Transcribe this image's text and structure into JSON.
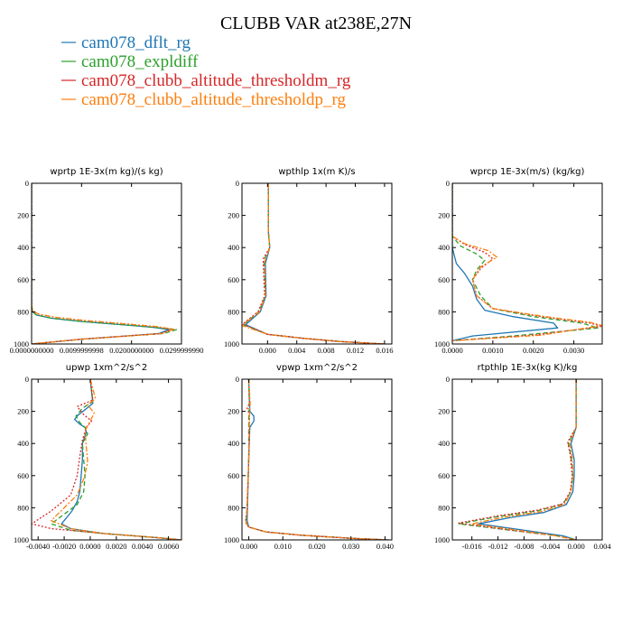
{
  "figure": {
    "title": "CLUBB VAR at238E,27N",
    "legend": [
      {
        "label": "cam078_dflt_rg",
        "color": "#1f77b4"
      },
      {
        "label": "cam078_expldiff",
        "color": "#2ca02c"
      },
      {
        "label": "cam078_clubb_altitude_thresholdm_rg",
        "color": "#d62728"
      },
      {
        "label": "cam078_clubb_altitude_thresholdp_rg",
        "color": "#ff7f0e"
      }
    ]
  },
  "chart_data": [
    {
      "type": "line",
      "title": "wprtp  1E-3x(m kg)/(s kg)",
      "xlim": [
        0.0,
        0.03
      ],
      "ylim": [
        1000,
        0
      ],
      "xticks": [
        0.0,
        0.0099999998,
        0.02,
        0.029999999
      ],
      "xtick_labels": [
        "0.0000000000",
        "0.0099999998",
        "0.0200000000",
        "0.0299999990"
      ],
      "yticks": [
        0,
        200,
        400,
        600,
        800,
        1000
      ],
      "series": [
        {
          "color": "#1f77b4",
          "dash": "solid",
          "x": [
            0.0,
            0.0,
            0.0002,
            0.001,
            0.004,
            0.01,
            0.018,
            0.024,
            0.0275,
            0.0255,
            0.01,
            0.0
          ],
          "y": [
            0,
            760,
            800,
            820,
            840,
            860,
            880,
            895,
            910,
            935,
            970,
            1000
          ]
        },
        {
          "color": "#2ca02c",
          "dash": "5,3",
          "x": [
            0.0,
            0.0,
            0.0002,
            0.001,
            0.004,
            0.01,
            0.018,
            0.024,
            0.029,
            0.0265,
            0.01,
            0.0
          ],
          "y": [
            0,
            760,
            800,
            820,
            840,
            860,
            880,
            895,
            910,
            935,
            970,
            1000
          ]
        },
        {
          "color": "#d62728",
          "dash": "2,2",
          "x": [
            0.0,
            0.0,
            0.0002,
            0.0015,
            0.005,
            0.011,
            0.019,
            0.025,
            0.028,
            0.026,
            0.01,
            0.0
          ],
          "y": [
            0,
            760,
            795,
            815,
            835,
            855,
            875,
            892,
            908,
            935,
            970,
            1000
          ]
        },
        {
          "color": "#ff7f0e",
          "dash": "6,2,2,2",
          "x": [
            0.0,
            0.0,
            0.0002,
            0.0015,
            0.005,
            0.011,
            0.019,
            0.025,
            0.0285,
            0.0262,
            0.01,
            0.0
          ],
          "y": [
            0,
            760,
            795,
            815,
            835,
            855,
            875,
            892,
            908,
            935,
            970,
            1000
          ]
        }
      ]
    },
    {
      "type": "line",
      "title": "wpthlp  1x(m K)/s",
      "xlim": [
        -0.0035,
        0.017
      ],
      "ylim": [
        1000,
        0
      ],
      "xticks": [
        0.0,
        0.004,
        0.008,
        0.012,
        0.016
      ],
      "xtick_labels": [
        "0.000",
        "0.004",
        "0.008",
        "0.012",
        "0.016"
      ],
      "yticks": [
        0,
        200,
        400,
        600,
        800,
        1000
      ],
      "series": [
        {
          "color": "#1f77b4",
          "dash": "solid",
          "x": [
            0.0001,
            0.0001,
            0.0003,
            -0.0003,
            -0.0002,
            -0.001,
            -0.003,
            0.0,
            0.005,
            0.01,
            0.016
          ],
          "y": [
            0,
            300,
            400,
            500,
            700,
            800,
            880,
            940,
            965,
            985,
            1000
          ]
        },
        {
          "color": "#2ca02c",
          "dash": "5,3",
          "x": [
            0.0001,
            0.0001,
            0.0003,
            -0.0005,
            -0.0003,
            -0.0012,
            -0.0033,
            0.0,
            0.005,
            0.01,
            0.016
          ],
          "y": [
            0,
            300,
            400,
            480,
            700,
            800,
            880,
            940,
            965,
            985,
            1000
          ]
        },
        {
          "color": "#d62728",
          "dash": "2,2",
          "x": [
            0.0001,
            0.0001,
            0.0003,
            -0.0006,
            -0.0004,
            -0.0013,
            -0.0034,
            0.0,
            0.005,
            0.01,
            0.016
          ],
          "y": [
            0,
            300,
            400,
            470,
            700,
            800,
            875,
            940,
            965,
            985,
            1000
          ]
        },
        {
          "color": "#ff7f0e",
          "dash": "6,2,2,2",
          "x": [
            0.0001,
            0.0001,
            0.0003,
            -0.0004,
            -0.0003,
            -0.0011,
            -0.0035,
            0.0,
            0.005,
            0.01,
            0.016
          ],
          "y": [
            0,
            300,
            400,
            490,
            700,
            800,
            885,
            940,
            965,
            985,
            1000
          ]
        }
      ]
    },
    {
      "type": "line",
      "title": "wprcp  1E-3x(m/s) (kg/kg)",
      "xlim": [
        0.0,
        0.0037
      ],
      "ylim": [
        1000,
        0
      ],
      "xticks": [
        0.0,
        0.001,
        0.002,
        0.003
      ],
      "xtick_labels": [
        "0.0000",
        "0.0010",
        "0.0020",
        "0.0030"
      ],
      "yticks": [
        0,
        200,
        400,
        600,
        800,
        1000
      ],
      "series": [
        {
          "color": "#1f77b4",
          "dash": "solid",
          "x": [
            0.0,
            0.0,
            0.0,
            5e-05,
            0.0001,
            0.0003,
            0.0005,
            0.0006,
            0.0008,
            0.0015,
            0.0025,
            0.0026,
            0.0005,
            0.0
          ],
          "y": [
            0,
            380,
            400,
            450,
            500,
            560,
            640,
            720,
            790,
            830,
            870,
            900,
            950,
            980
          ]
        },
        {
          "color": "#2ca02c",
          "dash": "5,3",
          "x": [
            0.0,
            0.0,
            0.0002,
            0.0006,
            0.0008,
            0.0006,
            0.0005,
            0.0007,
            0.001,
            0.002,
            0.0032,
            0.0036,
            0.0015,
            0.0
          ],
          "y": [
            0,
            330,
            390,
            440,
            480,
            540,
            600,
            700,
            780,
            830,
            870,
            900,
            950,
            980
          ]
        },
        {
          "color": "#d62728",
          "dash": "2,2",
          "x": [
            0.0,
            0.0,
            0.0003,
            0.0008,
            0.001,
            0.0007,
            0.0005,
            0.0006,
            0.001,
            0.0022,
            0.0034,
            0.0037,
            0.002,
            0.0
          ],
          "y": [
            0,
            330,
            380,
            430,
            470,
            530,
            600,
            700,
            780,
            830,
            870,
            890,
            945,
            980
          ]
        },
        {
          "color": "#ff7f0e",
          "dash": "6,2,2,2",
          "x": [
            0.0,
            0.0,
            0.0003,
            0.0009,
            0.0011,
            0.0007,
            0.0005,
            0.0006,
            0.001,
            0.0023,
            0.0034,
            0.0037,
            0.0022,
            0.0
          ],
          "y": [
            0,
            330,
            375,
            420,
            460,
            520,
            600,
            700,
            780,
            830,
            865,
            885,
            945,
            980
          ]
        }
      ]
    },
    {
      "type": "line",
      "title": "upwp  1xm^2/s^2",
      "xlim": [
        -0.0045,
        0.007
      ],
      "ylim": [
        1000,
        0
      ],
      "xticks": [
        -0.004,
        -0.002,
        0.0,
        0.002,
        0.004,
        0.006
      ],
      "xtick_labels": [
        "-0.0040",
        "-0.0020",
        "0.0000",
        "0.0020",
        "0.0040",
        "0.0060"
      ],
      "yticks": [
        0,
        200,
        400,
        600,
        800,
        1000
      ],
      "series": [
        {
          "color": "#1f77b4",
          "dash": "solid",
          "x": [
            0.0,
            0.0002,
            -0.0004,
            -0.0009,
            -0.0012,
            -0.0008,
            -0.0004,
            -0.0003,
            -0.0006,
            -0.0006,
            -0.0007,
            -0.0008,
            -0.001,
            -0.0014,
            -0.0022,
            -0.0015,
            0.001,
            0.005,
            0.007
          ],
          "y": [
            0,
            150,
            190,
            220,
            250,
            280,
            300,
            330,
            400,
            500,
            600,
            700,
            760,
            820,
            900,
            930,
            960,
            985,
            1000
          ]
        },
        {
          "color": "#2ca02c",
          "dash": "5,3",
          "x": [
            0.0,
            0.0002,
            -0.0006,
            -0.0011,
            -0.0008,
            -0.0004,
            -0.0002,
            -0.0006,
            -0.0005,
            -0.0004,
            -0.0005,
            -0.001,
            -0.002,
            -0.003,
            -0.0015,
            0.001,
            0.005,
            0.007
          ],
          "y": [
            0,
            140,
            180,
            230,
            270,
            300,
            340,
            400,
            500,
            600,
            700,
            780,
            840,
            900,
            940,
            960,
            985,
            1000
          ]
        },
        {
          "color": "#d62728",
          "dash": "2,2",
          "x": [
            0.0,
            0.0002,
            -0.001,
            -0.0005,
            0.0001,
            -0.0003,
            -0.0006,
            -0.0008,
            -0.001,
            -0.0015,
            -0.003,
            -0.0045,
            -0.003,
            0.001,
            0.005,
            0.007
          ],
          "y": [
            0,
            130,
            170,
            220,
            260,
            300,
            380,
            480,
            600,
            720,
            820,
            900,
            930,
            960,
            985,
            1000
          ]
        },
        {
          "color": "#ff7f0e",
          "dash": "6,2,2,2",
          "x": [
            0.0,
            0.0004,
            -0.0002,
            0.0003,
            0.0,
            -0.0004,
            -0.0003,
            -0.0002,
            -0.0005,
            -0.001,
            -0.002,
            -0.003,
            -0.0015,
            0.001,
            0.005,
            0.007
          ],
          "y": [
            0,
            120,
            160,
            210,
            260,
            320,
            420,
            520,
            620,
            720,
            800,
            880,
            930,
            960,
            985,
            1000
          ]
        }
      ]
    },
    {
      "type": "line",
      "title": "vpwp  1xm^2/s^2",
      "xlim": [
        -0.002,
        0.042
      ],
      "ylim": [
        1000,
        0
      ],
      "xticks": [
        0.0,
        0.01,
        0.02,
        0.03,
        0.04
      ],
      "xtick_labels": [
        "0.000",
        "0.010",
        "0.020",
        "0.030",
        "0.040"
      ],
      "yticks": [
        0,
        200,
        400,
        600,
        800,
        1000
      ],
      "series": [
        {
          "color": "#1f77b4",
          "dash": "solid",
          "x": [
            0.0,
            0.0002,
            0.0003,
            0.0015,
            0.0015,
            0.0003,
            0.0,
            -0.0005,
            0.0,
            0.005,
            0.015,
            0.03,
            0.041
          ],
          "y": [
            0,
            150,
            200,
            230,
            260,
            300,
            500,
            880,
            920,
            950,
            970,
            990,
            1000
          ]
        },
        {
          "color": "#2ca02c",
          "dash": "5,3",
          "x": [
            0.0,
            0.0002,
            0.0,
            0.0,
            -0.0005,
            -0.0008,
            0.0,
            0.005,
            0.015,
            0.03,
            0.041
          ],
          "y": [
            0,
            150,
            250,
            500,
            800,
            890,
            920,
            950,
            970,
            990,
            1000
          ]
        },
        {
          "color": "#d62728",
          "dash": "2,2",
          "x": [
            0.0,
            0.0002,
            -0.0005,
            0.0002,
            0.0,
            -0.0005,
            -0.001,
            0.0,
            0.005,
            0.015,
            0.03,
            0.041
          ],
          "y": [
            0,
            150,
            180,
            220,
            500,
            800,
            890,
            920,
            950,
            970,
            990,
            1000
          ]
        },
        {
          "color": "#ff7f0e",
          "dash": "6,2,2,2",
          "x": [
            0.0,
            0.0004,
            0.0002,
            0.0,
            -0.0005,
            -0.0008,
            0.0,
            0.005,
            0.015,
            0.03,
            0.041
          ],
          "y": [
            0,
            150,
            220,
            500,
            800,
            890,
            920,
            950,
            970,
            990,
            1000
          ]
        }
      ]
    },
    {
      "type": "line",
      "title": "rtpthlp  1E-3x(kg K)/kg",
      "xlim": [
        -0.019,
        0.004
      ],
      "ylim": [
        1000,
        0
      ],
      "xticks": [
        -0.016,
        -0.012,
        -0.008,
        -0.004,
        0.0,
        0.004
      ],
      "xtick_labels": [
        "-0.016",
        "-0.012",
        "-0.008",
        "-0.004",
        "0.000",
        "0.004"
      ],
      "yticks": [
        0,
        200,
        400,
        600,
        800,
        1000
      ],
      "series": [
        {
          "color": "#1f77b4",
          "dash": "solid",
          "x": [
            0.0,
            0.0,
            -0.0008,
            -0.0003,
            -0.0003,
            -0.0005,
            -0.0015,
            -0.005,
            -0.01,
            -0.015,
            -0.008,
            -0.002,
            0.0
          ],
          "y": [
            0,
            300,
            400,
            500,
            600,
            700,
            780,
            830,
            860,
            900,
            940,
            975,
            1000
          ]
        },
        {
          "color": "#2ca02c",
          "dash": "5,3",
          "x": [
            0.0,
            0.0,
            -0.0012,
            -0.0008,
            -0.0005,
            -0.0008,
            -0.002,
            -0.006,
            -0.012,
            -0.018,
            -0.01,
            -0.003,
            0.0
          ],
          "y": [
            0,
            300,
            400,
            480,
            600,
            700,
            775,
            820,
            855,
            900,
            940,
            975,
            1000
          ]
        },
        {
          "color": "#d62728",
          "dash": "2,2",
          "x": [
            0.0,
            0.0,
            -0.0013,
            -0.0009,
            -0.0006,
            -0.0009,
            -0.002,
            -0.006,
            -0.012,
            -0.018,
            -0.01,
            -0.003,
            0.0
          ],
          "y": [
            0,
            300,
            390,
            470,
            600,
            700,
            775,
            815,
            850,
            895,
            940,
            975,
            1000
          ]
        },
        {
          "color": "#ff7f0e",
          "dash": "6,2,2,2",
          "x": [
            0.0,
            0.0,
            -0.001,
            -0.0006,
            -0.0005,
            -0.0008,
            -0.0018,
            -0.0055,
            -0.011,
            -0.016,
            -0.009,
            -0.003,
            0.0
          ],
          "y": [
            0,
            300,
            400,
            490,
            600,
            700,
            780,
            825,
            858,
            900,
            940,
            975,
            1000
          ]
        }
      ]
    }
  ]
}
